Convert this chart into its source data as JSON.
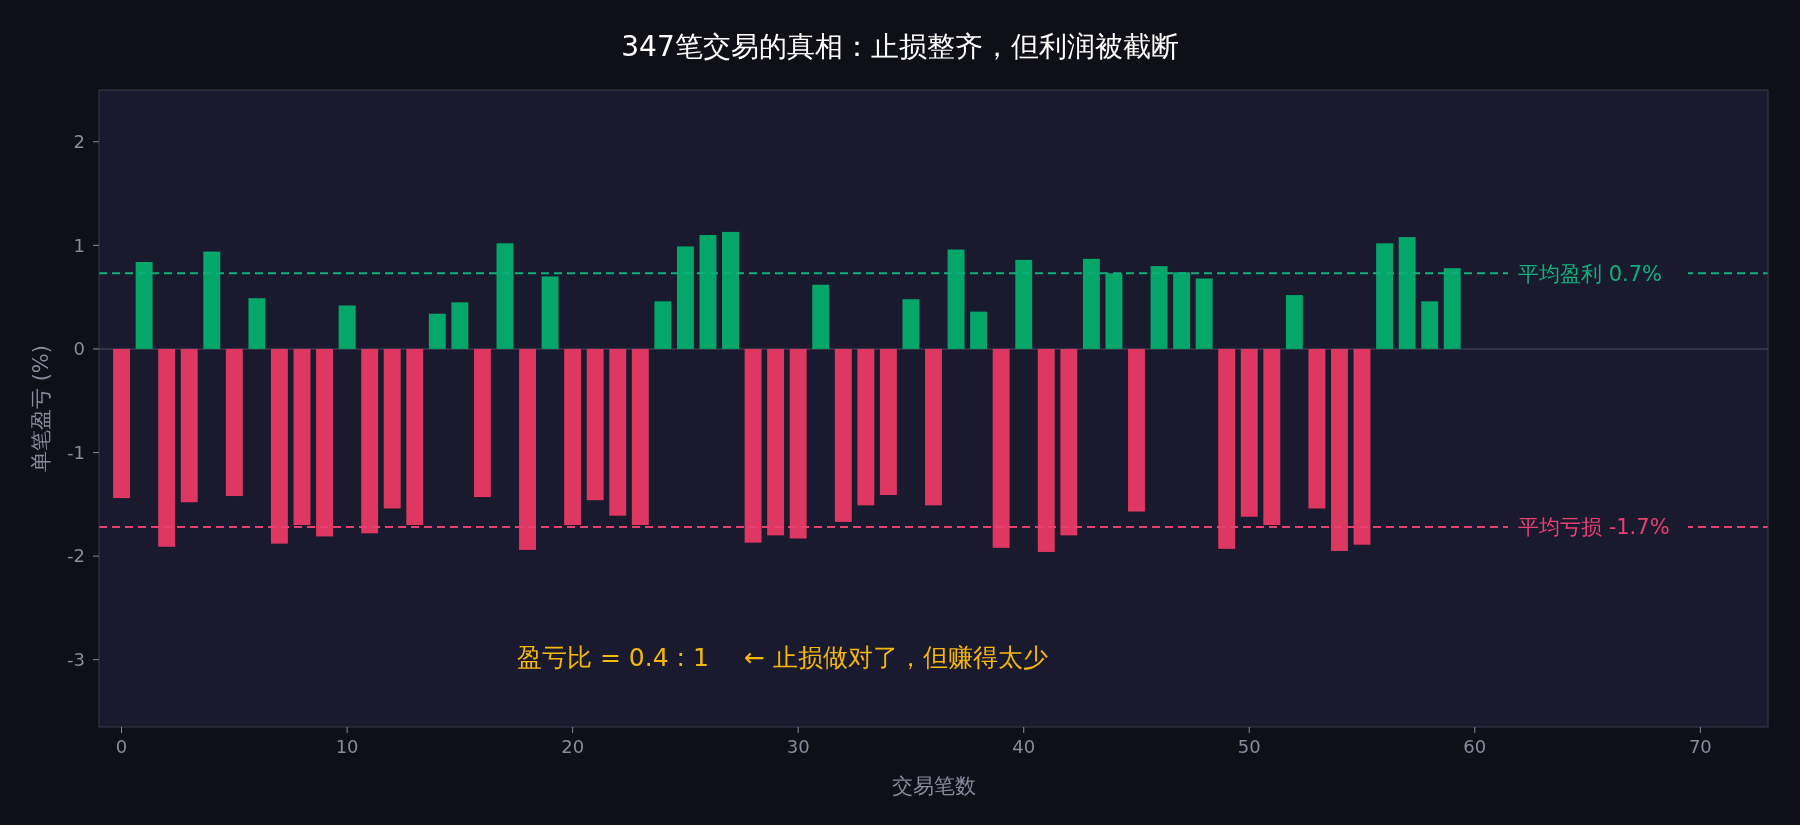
{
  "chart_data": {
    "type": "bar",
    "title": "347笔交易的真相：止损整齐，但利润被截断",
    "xlabel": "交易笔数",
    "ylabel": "单笔盈亏 (%)",
    "x": [
      0,
      1,
      2,
      3,
      4,
      5,
      6,
      7,
      8,
      9,
      10,
      11,
      12,
      13,
      14,
      15,
      16,
      17,
      18,
      19,
      20,
      21,
      22,
      23,
      24,
      25,
      26,
      27,
      28,
      29,
      30,
      31,
      32,
      33,
      34,
      35,
      36,
      37,
      38,
      39,
      40,
      41,
      42,
      43,
      44,
      45,
      46,
      47,
      48,
      49,
      50,
      51,
      52,
      53,
      54,
      55,
      56,
      57,
      58,
      59
    ],
    "values": [
      -1.44,
      0.84,
      -1.91,
      -1.48,
      0.94,
      -1.42,
      0.49,
      -1.88,
      -1.7,
      -1.81,
      0.42,
      -1.78,
      -1.54,
      -1.7,
      0.34,
      0.45,
      -1.43,
      1.02,
      -1.94,
      0.7,
      -1.7,
      -1.46,
      -1.61,
      -1.7,
      0.46,
      0.99,
      1.1,
      1.13,
      -1.87,
      -1.8,
      -1.83,
      0.62,
      -1.67,
      -1.51,
      -1.41,
      0.48,
      -1.51,
      0.96,
      0.36,
      -1.92,
      0.86,
      -1.96,
      -1.8,
      0.87,
      0.73,
      -1.57,
      0.8,
      0.74,
      0.68,
      -1.93,
      -1.62,
      -1.7,
      0.52,
      -1.54,
      -1.95,
      -1.89,
      1.02,
      1.08,
      0.46,
      0.78
    ],
    "colors": [
      "#de3762",
      "#04a66a",
      "#de3762",
      "#de3762",
      "#04a66a",
      "#de3762",
      "#04a66a",
      "#de3762",
      "#de3762",
      "#de3762",
      "#04a66a",
      "#de3762",
      "#de3762",
      "#de3762",
      "#04a66a",
      "#04a66a",
      "#de3762",
      "#04a66a",
      "#de3762",
      "#04a66a",
      "#de3762",
      "#de3762",
      "#de3762",
      "#de3762",
      "#04a66a",
      "#04a66a",
      "#04a66a",
      "#04a66a",
      "#de3762",
      "#de3762",
      "#de3762",
      "#04a66a",
      "#de3762",
      "#de3762",
      "#de3762",
      "#04a66a",
      "#de3762",
      "#04a66a",
      "#04a66a",
      "#de3762",
      "#04a66a",
      "#de3762",
      "#de3762",
      "#04a66a",
      "#04a66a",
      "#de3762",
      "#04a66a",
      "#04a66a",
      "#04a66a",
      "#de3762",
      "#de3762",
      "#de3762",
      "#04a66a",
      "#de3762",
      "#de3762",
      "#de3762",
      "#04a66a",
      "#04a66a",
      "#04a66a",
      "#04a66a"
    ],
    "xlim": [
      -1,
      73
    ],
    "ylim": [
      -3.65,
      2.5
    ],
    "xticks": [
      0,
      10,
      20,
      30,
      40,
      50,
      60,
      70
    ],
    "yticks": [
      -3,
      -2,
      -1,
      0,
      1,
      2
    ],
    "ref_lines": [
      {
        "axis": "y",
        "value": 0,
        "label": null,
        "color": "#3a3a4c",
        "line_style": "solid"
      },
      {
        "axis": "y",
        "value": 0.73,
        "label": "平均盈利 0.7%",
        "color": "#0fb07a",
        "line_style": "dashed"
      },
      {
        "axis": "y",
        "value": -1.72,
        "label": "平均亏损 -1.7%",
        "color": "#e84070",
        "line_style": "dashed"
      }
    ],
    "annotations": [
      "盈亏比 = 0.4 : 1",
      "← 止损做对了，但赚得太少"
    ],
    "grid": false
  }
}
